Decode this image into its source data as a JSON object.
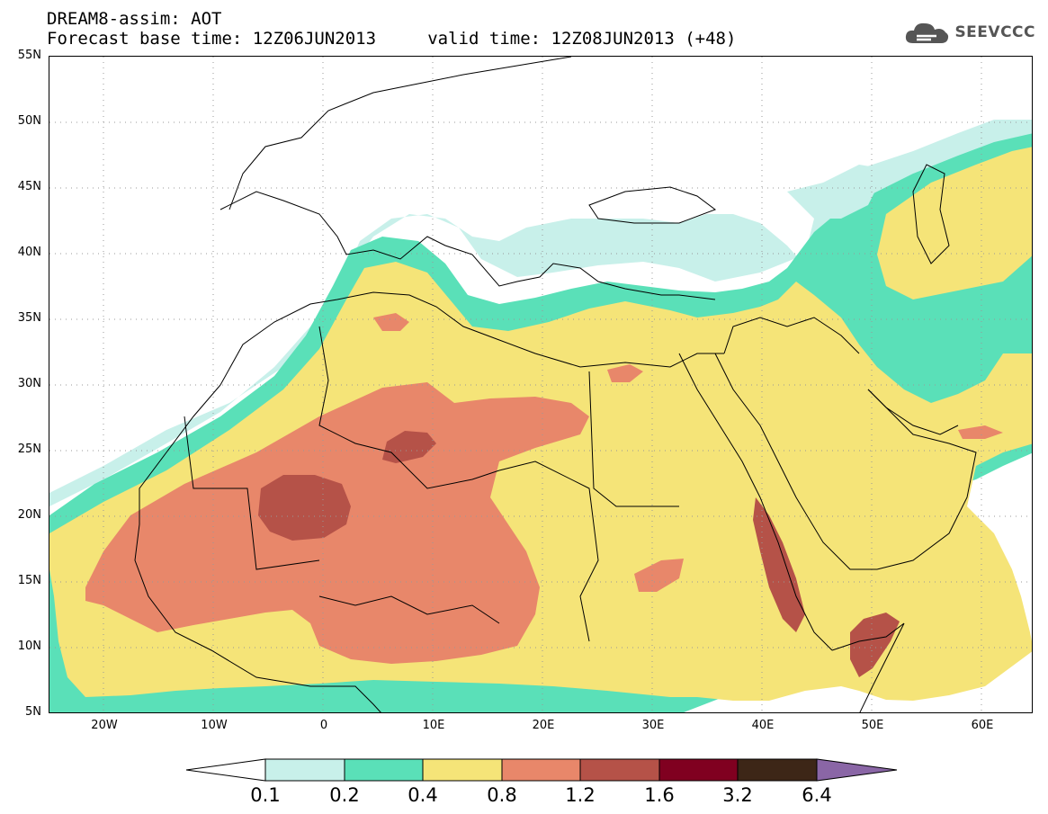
{
  "title": {
    "line1": "DREAM8-assim: AOT",
    "line2": "Forecast base time: 12Z06JUN2013     valid time: 12Z08JUN2013 (+48)"
  },
  "logo": {
    "text": "SEEVCCC",
    "icon": "cloud-icon"
  },
  "map": {
    "lat_labels": [
      "55N",
      "50N",
      "45N",
      "40N",
      "35N",
      "30N",
      "25N",
      "20N",
      "15N",
      "10N",
      "5N"
    ],
    "lon_labels": [
      "20W",
      "10W",
      "0",
      "10E",
      "20E",
      "30E",
      "40E",
      "50E",
      "60E"
    ],
    "grid": "dotted",
    "field": "AOT"
  },
  "legend": {
    "labels": [
      "0.1",
      "0.2",
      "0.4",
      "0.8",
      "1.2",
      "1.6",
      "3.2",
      "6.4"
    ],
    "colors": [
      "#ffffff",
      "#c8f0ea",
      "#5ae0b8",
      "#f5e478",
      "#e8876a",
      "#b55248",
      "#800020",
      "#3d2617",
      "#8a66a6"
    ]
  },
  "colors": {
    "c1": "#c8f0ea",
    "c2": "#5ae0b8",
    "c3": "#f5e478",
    "c4": "#e8876a",
    "c5": "#b55248",
    "c6": "#800020",
    "c7": "#3d2617"
  }
}
